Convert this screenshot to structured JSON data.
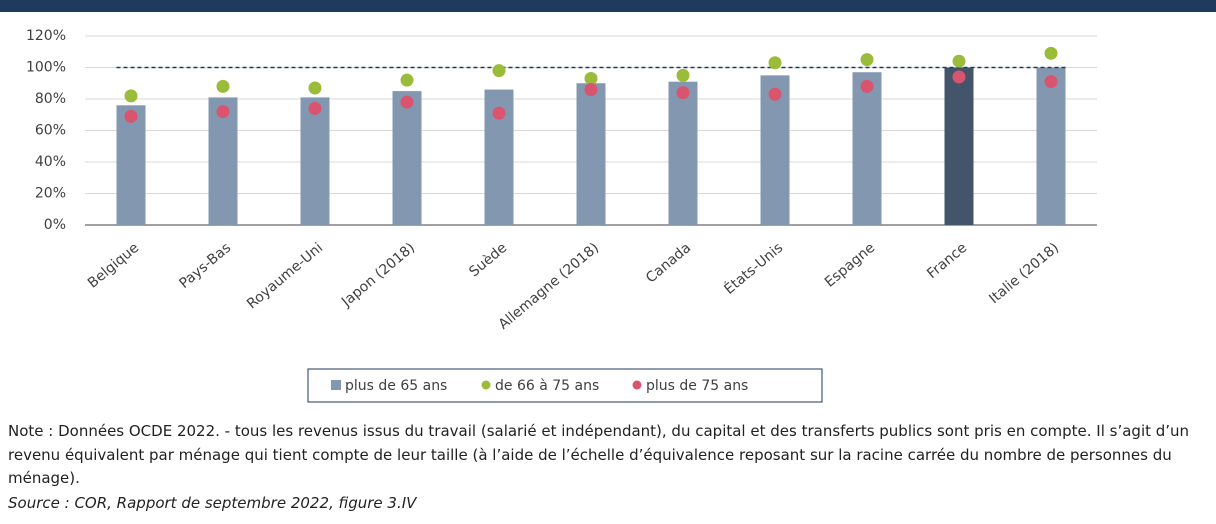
{
  "chart_data": {
    "type": "bar",
    "categories": [
      "Belgique",
      "Pays-Bas",
      "Royaume-Uni",
      "Japon (2018)",
      "Suède",
      "Allemagne (2018)",
      "Canada",
      "États-Unis",
      "Espagne",
      "France",
      "Italie (2018)"
    ],
    "series": [
      {
        "name": "plus de 65 ans",
        "type": "bar",
        "color": "#8497b0",
        "colors": [
          "#8497b0",
          "#8497b0",
          "#8497b0",
          "#8497b0",
          "#8497b0",
          "#8497b0",
          "#8497b0",
          "#8497b0",
          "#8497b0",
          "#44546a",
          "#8497b0"
        ],
        "values": [
          76,
          81,
          81,
          85,
          86,
          90,
          91,
          95,
          97,
          100,
          100
        ]
      },
      {
        "name": "de 66 à 75 ans",
        "type": "dot",
        "color": "#9bbb3b",
        "values": [
          82,
          88,
          87,
          92,
          98,
          93,
          95,
          103,
          105,
          104,
          109
        ]
      },
      {
        "name": "plus de 75 ans",
        "type": "dot",
        "color": "#d9546e",
        "values": [
          69,
          72,
          74,
          78,
          71,
          86,
          84,
          83,
          88,
          94,
          91
        ]
      }
    ],
    "reference_line": 100,
    "ylim": [
      0,
      120
    ],
    "yticks": [
      {
        "value": 0,
        "label": "0%"
      },
      {
        "value": 20,
        "label": "20%"
      },
      {
        "value": 40,
        "label": "40%"
      },
      {
        "value": 60,
        "label": "60%"
      },
      {
        "value": 80,
        "label": "80%"
      },
      {
        "value": 100,
        "label": "100%"
      },
      {
        "value": 120,
        "label": "120%"
      }
    ],
    "grid": true
  },
  "note": "Note : Données OCDE 2022. - tous les revenus issus du travail (salarié et indépendant), du capital et des transferts publics sont pris en compte. Il s’agit d’un revenu équivalent par ménage qui tient compte de leur taille (à l’aide de l’échelle d’équivalence reposant sur la racine carrée du nombre de personnes du ménage).",
  "source": "Source : COR, Rapport de septembre 2022, figure 3.IV"
}
